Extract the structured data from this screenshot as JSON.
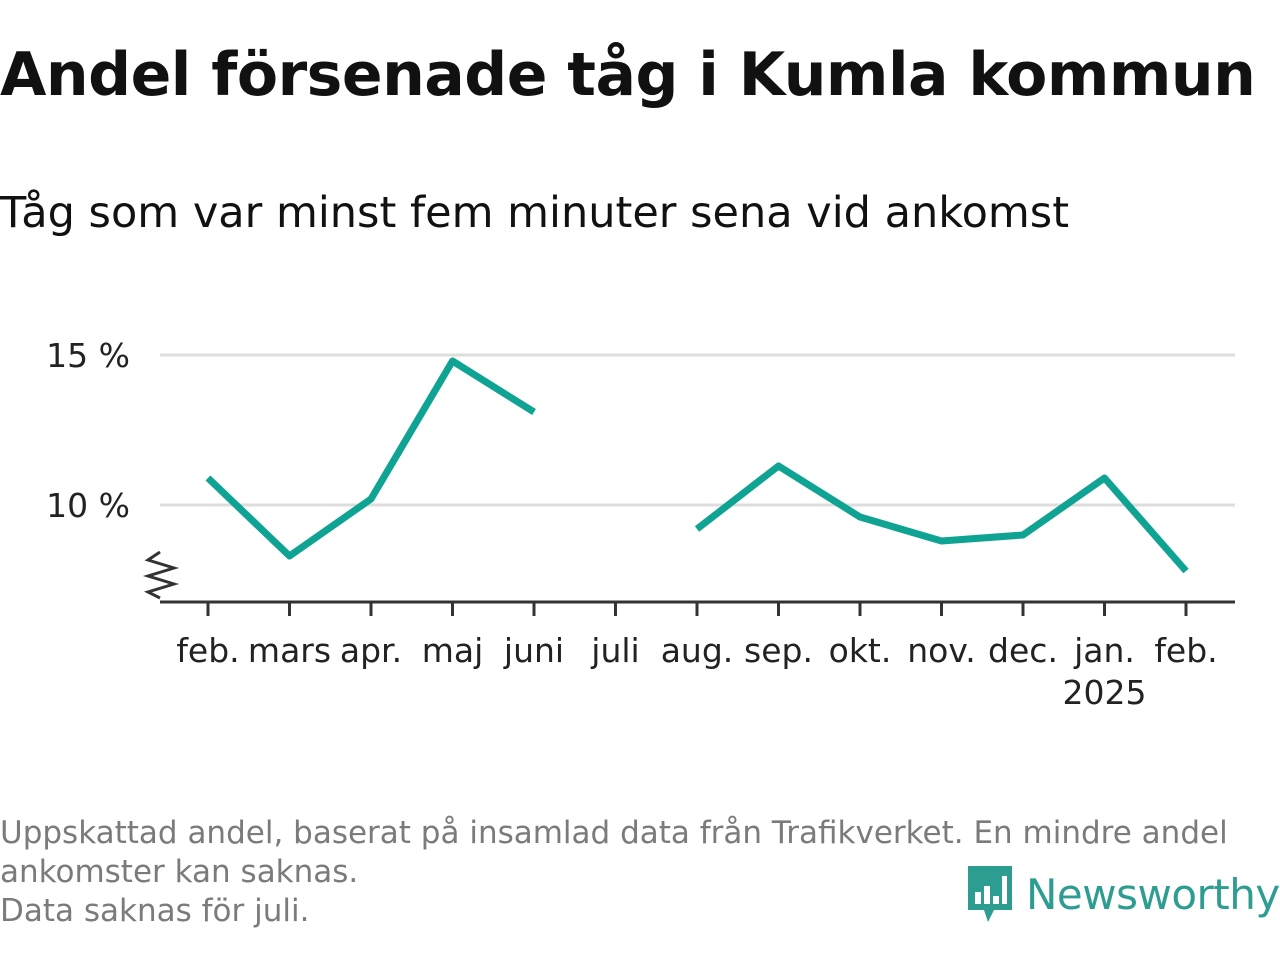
{
  "chart_data": {
    "type": "line",
    "title": "Andel försenade tåg i Kumla kommun",
    "subtitle": "Tåg som var minst fem minuter sena vid ankomst",
    "categories": [
      "feb.",
      "mars",
      "apr.",
      "maj",
      "juni",
      "juli",
      "aug.",
      "sep.",
      "okt.",
      "nov.",
      "dec.",
      "jan.",
      "feb."
    ],
    "year_labels": [
      "",
      "",
      "",
      "",
      "",
      "",
      "",
      "",
      "",
      "",
      "",
      "2025",
      ""
    ],
    "series": [
      {
        "values": [
          10.9,
          8.3,
          10.2,
          14.8,
          13.1,
          null,
          9.2,
          11.3,
          9.6,
          8.8,
          9.0,
          10.9,
          7.8
        ]
      }
    ],
    "yticks": [
      10,
      15
    ],
    "ytick_labels": [
      "10 %",
      "15 %"
    ],
    "ylim": [
      7,
      16
    ],
    "y_axis_break": true,
    "grid": true,
    "line_color": "#0ea393",
    "grid_color": "#dddddd",
    "axis_color": "#333333"
  },
  "footnote": {
    "lines": [
      "Uppskattad andel, baserat på insamlad data från Trafikverket. En mindre andel",
      "ankomster kan saknas.",
      "Data saknas för juli."
    ]
  },
  "brand": {
    "name": "Newsworthy",
    "icon": "newsworthy-logo-icon",
    "color": "#2d9c91"
  }
}
